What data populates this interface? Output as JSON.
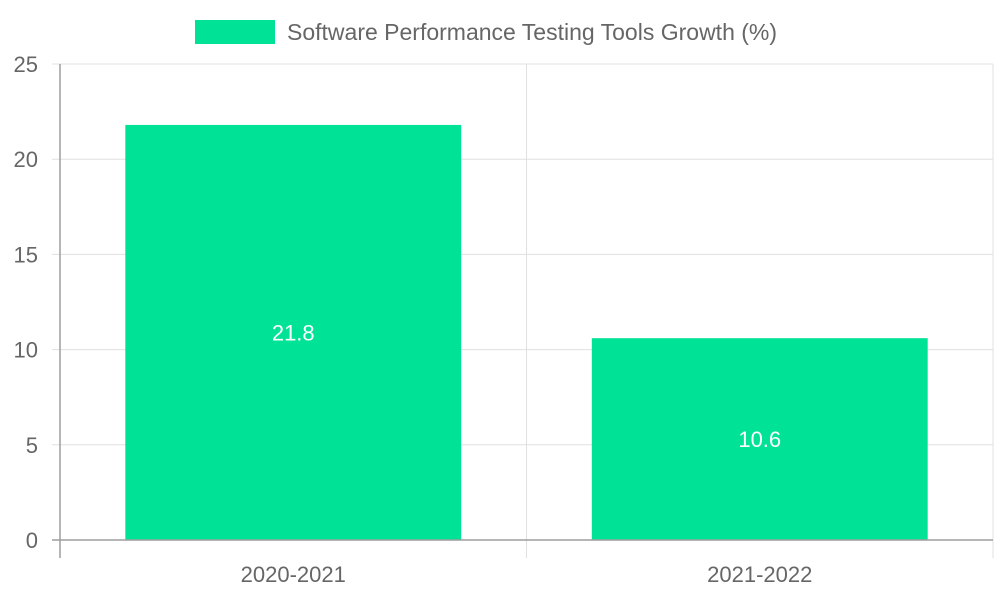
{
  "chart_data": {
    "type": "bar",
    "title": "",
    "categories": [
      "2020-2021",
      "2021-2022"
    ],
    "series": [
      {
        "name": "Software Performance Testing Tools Growth (%)",
        "values": [
          21.8,
          10.6
        ],
        "color": "#00e396"
      }
    ],
    "data_labels": [
      "21.8",
      "10.6"
    ],
    "xlabel": "",
    "ylabel": "",
    "ylim": [
      0,
      25
    ],
    "yticks": [
      0,
      5,
      10,
      15,
      20,
      25
    ],
    "ytick_labels": [
      "0",
      "5",
      "10",
      "15",
      "20",
      "25"
    ],
    "grid": true,
    "legend_position": "top-center"
  }
}
